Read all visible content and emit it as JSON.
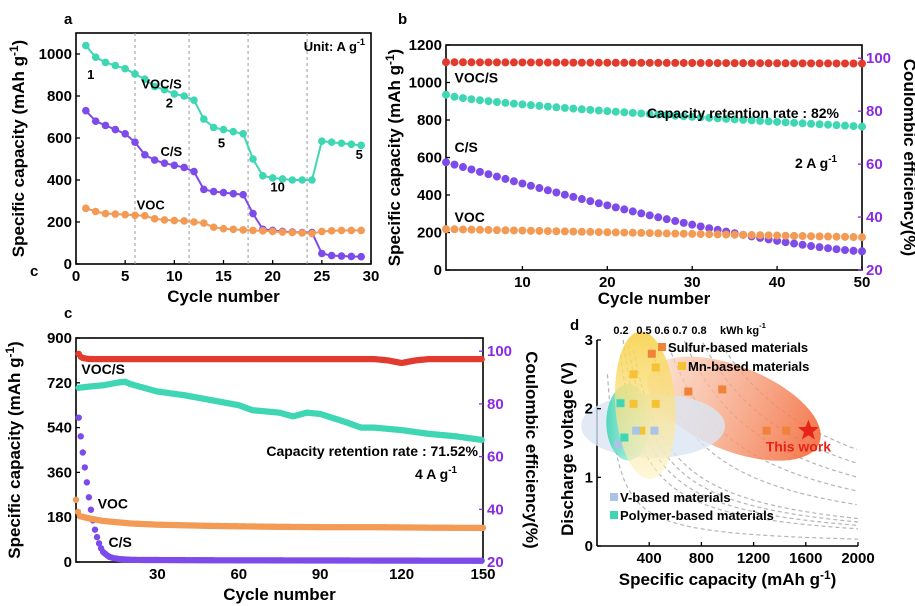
{
  "colors": {
    "voc_s": "#3fd6b4",
    "c_s": "#7d4bea",
    "voc": "#f39a55",
    "ce": "#e23b2e",
    "right_axis": "#8a2be2",
    "star": "#e8231a",
    "sulfur": "#f0823a",
    "mn": "#f5c233",
    "v_based": "#a9c4e4",
    "polymer": "#3fd6b4"
  },
  "chart_data": [
    {
      "panel": "a",
      "type": "line",
      "xlabel": "Cycle number",
      "ylabel": "Specific capacity (mAh g-1)",
      "xlim": [
        0,
        30
      ],
      "ylim": [
        0,
        1100
      ],
      "xticks": [
        0,
        5,
        10,
        15,
        20,
        25,
        30
      ],
      "yticks": [
        0,
        200,
        400,
        600,
        800,
        1000
      ],
      "unit_note": "Unit: A g-1",
      "rate_labels": [
        {
          "text": "1",
          "x": 1.5,
          "y": 880
        },
        {
          "text": "2",
          "x": 9.5,
          "y": 745
        },
        {
          "text": "5",
          "x": 14.8,
          "y": 555
        },
        {
          "text": "10",
          "x": 20.5,
          "y": 345
        },
        {
          "text": "5",
          "x": 28.8,
          "y": 500
        }
      ],
      "series_labels": [
        {
          "text": "VOC/S",
          "x": 8.7,
          "y": 835
        },
        {
          "text": "C/S",
          "x": 9.7,
          "y": 515
        },
        {
          "text": "VOC",
          "x": 7.6,
          "y": 260
        }
      ],
      "series": [
        {
          "name": "VOC/S",
          "color_key": "voc_s",
          "x": [
            1,
            2,
            3,
            4,
            5,
            6,
            7,
            8,
            9,
            10,
            11,
            12,
            13,
            14,
            15,
            16,
            17,
            18,
            19,
            20,
            21,
            22,
            23,
            24,
            25,
            26,
            27,
            28,
            29
          ],
          "y": [
            1040,
            985,
            960,
            945,
            930,
            905,
            880,
            845,
            830,
            810,
            800,
            780,
            690,
            650,
            640,
            630,
            620,
            500,
            420,
            410,
            405,
            400,
            400,
            400,
            585,
            580,
            575,
            570,
            565
          ]
        },
        {
          "name": "C/S",
          "color_key": "c_s",
          "x": [
            1,
            2,
            3,
            4,
            5,
            6,
            7,
            8,
            9,
            10,
            11,
            12,
            13,
            14,
            15,
            16,
            17,
            18,
            19,
            20,
            21,
            22,
            23,
            24,
            25,
            26,
            27,
            28,
            29
          ],
          "y": [
            730,
            680,
            660,
            640,
            620,
            580,
            520,
            495,
            480,
            470,
            460,
            440,
            355,
            345,
            340,
            335,
            330,
            240,
            165,
            160,
            155,
            152,
            150,
            150,
            50,
            40,
            38,
            36,
            35
          ]
        },
        {
          "name": "VOC",
          "color_key": "voc",
          "x": [
            1,
            2,
            3,
            4,
            5,
            6,
            7,
            8,
            9,
            10,
            11,
            12,
            13,
            14,
            15,
            16,
            17,
            18,
            19,
            20,
            21,
            22,
            23,
            24,
            25,
            26,
            27,
            28,
            29
          ],
          "y": [
            265,
            250,
            240,
            238,
            235,
            232,
            230,
            215,
            210,
            207,
            205,
            200,
            195,
            175,
            168,
            165,
            162,
            160,
            158,
            155,
            152,
            150,
            148,
            145,
            155,
            158,
            160,
            160,
            160
          ]
        }
      ],
      "dividers": [
        6,
        11.5,
        17.5,
        23.5
      ]
    },
    {
      "panel": "b",
      "type": "scatter",
      "xlabel": "Cycle number",
      "ylabel": "Specific capacity (mAh g-1)",
      "ylabel_right": "Coulombic efficiency(%)",
      "xlim": [
        1,
        50
      ],
      "ylim": [
        0,
        1200
      ],
      "ylim_right": [
        20,
        105
      ],
      "xticks": [
        10,
        20,
        30,
        40,
        50
      ],
      "yticks": [
        0,
        200,
        400,
        600,
        800,
        1000,
        1200
      ],
      "yticks_right": [
        20,
        40,
        60,
        80,
        100
      ],
      "annotation": "Capacity retention rate : 82%",
      "rate": "2 A g-1",
      "series_labels": [
        {
          "text": "VOC/S",
          "x": 2,
          "y": 1000
        },
        {
          "text": "C/S",
          "x": 2,
          "y": 630
        },
        {
          "text": "VOC",
          "x": 2,
          "y": 255
        }
      ],
      "series": [
        {
          "name": "CE",
          "color_key": "ce",
          "axis": "right",
          "x_start": 1,
          "x_end": 50,
          "y_start": 98.5,
          "y_end": 98.0
        },
        {
          "name": "VOC/S",
          "color_key": "voc_s",
          "x_start": 1,
          "x_end": 50,
          "y_start": 935,
          "y_end": 765
        },
        {
          "name": "C/S",
          "color_key": "c_s",
          "x_start": 1,
          "x_end": 50,
          "y_start": 575,
          "y_end": 100
        },
        {
          "name": "VOC",
          "color_key": "voc",
          "x_start": 1,
          "x_end": 50,
          "y_start": 218,
          "y_end": 175
        }
      ]
    },
    {
      "panel": "c",
      "type": "scatter",
      "xlabel": "Cycle number",
      "ylabel": "Specific capacity (mAh g-1)",
      "ylabel_right": "Coulombic efficiency(%)",
      "xlim": [
        0,
        150
      ],
      "ylim": [
        0,
        900
      ],
      "ylim_right": [
        20,
        105
      ],
      "xticks": [
        30,
        60,
        90,
        120,
        150
      ],
      "yticks": [
        0,
        180,
        360,
        540,
        720,
        900
      ],
      "yticks_right": [
        20,
        40,
        60,
        80,
        100
      ],
      "annotation": "Capacity retention rate : 71.52%",
      "rate": "4 A g-1",
      "series_labels": [
        {
          "text": "VOC/S",
          "x": 2,
          "y": 755
        },
        {
          "text": "VOC",
          "x": 8,
          "y": 215
        },
        {
          "text": "C/S",
          "x": 12,
          "y": 60
        }
      ],
      "series": [
        {
          "name": "CE",
          "color_key": "ce",
          "axis": "right",
          "x": [
            1,
            2,
            5,
            10,
            20,
            40,
            60,
            80,
            100,
            110,
            115,
            120,
            125,
            130,
            140,
            150
          ],
          "y": [
            99,
            97.5,
            97,
            97,
            97,
            97,
            97,
            97,
            97,
            97,
            96.5,
            95.5,
            96.5,
            97,
            97,
            97
          ]
        },
        {
          "name": "VOC/S",
          "color_key": "voc_s",
          "x": [
            1,
            5,
            10,
            15,
            18,
            20,
            25,
            30,
            40,
            50,
            60,
            65,
            70,
            75,
            80,
            85,
            90,
            100,
            105,
            110,
            120,
            130,
            140,
            150
          ],
          "y": [
            700,
            705,
            710,
            720,
            725,
            715,
            700,
            685,
            670,
            650,
            630,
            610,
            605,
            600,
            585,
            600,
            595,
            560,
            540,
            540,
            530,
            515,
            505,
            490
          ]
        },
        {
          "name": "C/S",
          "color_key": "c_s",
          "x": [
            1,
            2,
            3,
            4,
            5,
            6,
            7,
            8,
            9,
            10,
            12,
            14,
            16,
            18,
            20,
            25,
            30,
            50,
            100,
            150
          ],
          "y": [
            580,
            480,
            400,
            320,
            240,
            180,
            130,
            90,
            60,
            40,
            22,
            15,
            12,
            10,
            9,
            8,
            8,
            7,
            6,
            5
          ]
        },
        {
          "name": "VOC",
          "color_key": "voc",
          "x": [
            0,
            1,
            5,
            10,
            20,
            30,
            50,
            70,
            90,
            110,
            130,
            150
          ],
          "y": [
            250,
            185,
            175,
            165,
            155,
            150,
            145,
            142,
            140,
            140,
            138,
            137
          ]
        }
      ]
    },
    {
      "panel": "d",
      "type": "scatter",
      "xlabel": "Specific capacity (mAh g-1)",
      "ylabel": "Discharge voltage (V)",
      "xlim": [
        0,
        2000
      ],
      "ylim": [
        0,
        3
      ],
      "xticks": [
        400,
        800,
        1200,
        1600,
        2000
      ],
      "yticks": [
        0,
        1,
        2,
        3
      ],
      "energy_labels": [
        "0.2",
        "0.5",
        "0.6",
        "0.7",
        "0.8"
      ],
      "energy_unit": "kWh kg-1",
      "star_label": "This work",
      "legend": [
        {
          "label": "Sulfur-based materials",
          "color_key": "sulfur"
        },
        {
          "label": "Mn-based materials",
          "color_key": "mn"
        },
        {
          "label": "V-based materials",
          "color_key": "v_based"
        },
        {
          "label": "Polymer-based materials",
          "color_key": "polymer"
        }
      ],
      "points": [
        {
          "group": "sulfur",
          "x": 420,
          "y": 2.8
        },
        {
          "group": "sulfur",
          "x": 700,
          "y": 2.25
        },
        {
          "group": "sulfur",
          "x": 960,
          "y": 2.28
        },
        {
          "group": "sulfur",
          "x": 1300,
          "y": 1.68
        },
        {
          "group": "sulfur",
          "x": 1450,
          "y": 1.68
        },
        {
          "group": "mn",
          "x": 280,
          "y": 2.5
        },
        {
          "group": "mn",
          "x": 280,
          "y": 2.07
        },
        {
          "group": "mn",
          "x": 450,
          "y": 2.6
        },
        {
          "group": "mn",
          "x": 450,
          "y": 2.07
        },
        {
          "group": "mn",
          "x": 340,
          "y": 1.68
        },
        {
          "group": "v_based",
          "x": 160,
          "y": 1.48
        },
        {
          "group": "v_based",
          "x": 300,
          "y": 1.68
        },
        {
          "group": "v_based",
          "x": 440,
          "y": 1.68
        },
        {
          "group": "polymer",
          "x": 180,
          "y": 2.08
        },
        {
          "group": "polymer",
          "x": 210,
          "y": 1.58
        }
      ],
      "star": {
        "x": 1620,
        "y": 1.68
      }
    }
  ],
  "text": {
    "a_letter": "a",
    "b_letter": "b",
    "c_letter": "c",
    "c_letter_extra": "c",
    "d_letter": "d"
  }
}
